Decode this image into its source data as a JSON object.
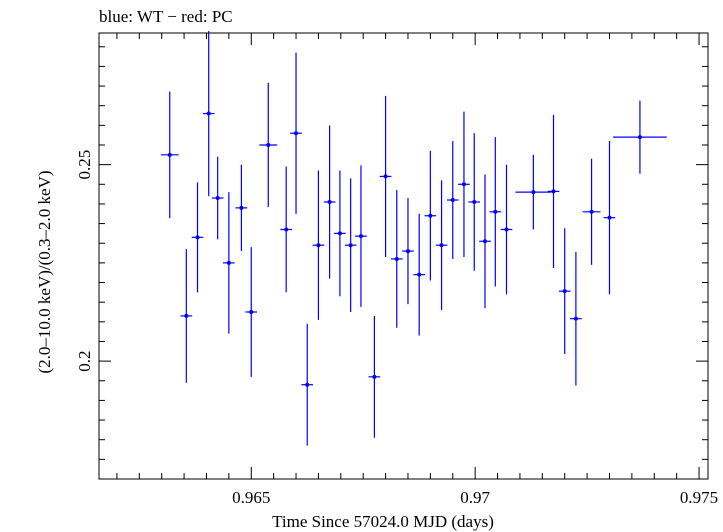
{
  "chart_data": {
    "type": "scatter",
    "title": "blue: WT − red: PC",
    "xlabel": "Time Since 57024.0 MJD (days)",
    "ylabel": "(2.0–10.0 keV)/(0.3–2.0 keV)",
    "xlim": [
      0.9616,
      0.9752
    ],
    "ylim": [
      0.17,
      0.2835
    ],
    "x_ticks": [
      0.965,
      0.97,
      0.975
    ],
    "x_tick_labels": [
      "0.965",
      "0.97",
      "0.975"
    ],
    "y_ticks": [
      0.2,
      0.25
    ],
    "y_tick_labels": [
      "0.2",
      "0.25"
    ],
    "grid": false,
    "series": [
      {
        "color": "#0000ff",
        "points": [
          {
            "x": 0.96318,
            "xerr": 0.0002,
            "y": 0.2525,
            "yerr": 0.0161
          },
          {
            "x": 0.96355,
            "xerr": 0.00013,
            "y": 0.2115,
            "yerr": 0.017
          },
          {
            "x": 0.9638,
            "xerr": 0.00013,
            "y": 0.2315,
            "yerr": 0.014
          },
          {
            "x": 0.96405,
            "xerr": 0.00013,
            "y": 0.263,
            "yerr": 0.021
          },
          {
            "x": 0.96425,
            "xerr": 0.00013,
            "y": 0.2415,
            "yerr": 0.0105
          },
          {
            "x": 0.9645,
            "xerr": 0.00013,
            "y": 0.225,
            "yerr": 0.018
          },
          {
            "x": 0.96478,
            "xerr": 0.00013,
            "y": 0.239,
            "yerr": 0.011
          },
          {
            "x": 0.965,
            "xerr": 0.00013,
            "y": 0.2125,
            "yerr": 0.0165
          },
          {
            "x": 0.96538,
            "xerr": 0.0002,
            "y": 0.255,
            "yerr": 0.0158
          },
          {
            "x": 0.96578,
            "xerr": 0.00013,
            "y": 0.2335,
            "yerr": 0.016
          },
          {
            "x": 0.966,
            "xerr": 0.00013,
            "y": 0.258,
            "yerr": 0.0205
          },
          {
            "x": 0.96625,
            "xerr": 0.00013,
            "y": 0.194,
            "yerr": 0.0155
          },
          {
            "x": 0.9665,
            "xerr": 0.00013,
            "y": 0.2295,
            "yerr": 0.019
          },
          {
            "x": 0.96675,
            "xerr": 0.00013,
            "y": 0.2405,
            "yerr": 0.0195
          },
          {
            "x": 0.96698,
            "xerr": 0.00013,
            "y": 0.2325,
            "yerr": 0.016
          },
          {
            "x": 0.96722,
            "xerr": 0.00013,
            "y": 0.2295,
            "yerr": 0.017
          },
          {
            "x": 0.96745,
            "xerr": 0.00013,
            "y": 0.2318,
            "yerr": 0.018
          },
          {
            "x": 0.96775,
            "xerr": 0.00013,
            "y": 0.196,
            "yerr": 0.0155
          },
          {
            "x": 0.968,
            "xerr": 0.00013,
            "y": 0.247,
            "yerr": 0.0205
          },
          {
            "x": 0.96825,
            "xerr": 0.00013,
            "y": 0.226,
            "yerr": 0.0175
          },
          {
            "x": 0.9685,
            "xerr": 0.00013,
            "y": 0.228,
            "yerr": 0.0135
          },
          {
            "x": 0.96875,
            "xerr": 0.00013,
            "y": 0.222,
            "yerr": 0.0155
          },
          {
            "x": 0.969,
            "xerr": 0.00013,
            "y": 0.237,
            "yerr": 0.0165
          },
          {
            "x": 0.96925,
            "xerr": 0.00013,
            "y": 0.2295,
            "yerr": 0.0165
          },
          {
            "x": 0.9695,
            "xerr": 0.00013,
            "y": 0.241,
            "yerr": 0.015
          },
          {
            "x": 0.96975,
            "xerr": 0.00013,
            "y": 0.245,
            "yerr": 0.0185
          },
          {
            "x": 0.96998,
            "xerr": 0.00013,
            "y": 0.2405,
            "yerr": 0.0175
          },
          {
            "x": 0.97022,
            "xerr": 0.00013,
            "y": 0.2305,
            "yerr": 0.017
          },
          {
            "x": 0.97045,
            "xerr": 0.00013,
            "y": 0.238,
            "yerr": 0.019
          },
          {
            "x": 0.9707,
            "xerr": 0.00013,
            "y": 0.2335,
            "yerr": 0.0165
          },
          {
            "x": 0.9713,
            "xerr": 0.0004,
            "y": 0.243,
            "yerr": 0.0095
          },
          {
            "x": 0.97175,
            "xerr": 0.00013,
            "y": 0.2432,
            "yerr": 0.0195
          },
          {
            "x": 0.972,
            "xerr": 0.00013,
            "y": 0.2178,
            "yerr": 0.016
          },
          {
            "x": 0.97225,
            "xerr": 0.00013,
            "y": 0.2108,
            "yerr": 0.017
          },
          {
            "x": 0.9726,
            "xerr": 0.0002,
            "y": 0.238,
            "yerr": 0.0135
          },
          {
            "x": 0.973,
            "xerr": 0.00013,
            "y": 0.2365,
            "yerr": 0.0195
          },
          {
            "x": 0.97368,
            "xerr": 0.0006,
            "y": 0.257,
            "yerr": 0.0093
          }
        ]
      }
    ]
  }
}
